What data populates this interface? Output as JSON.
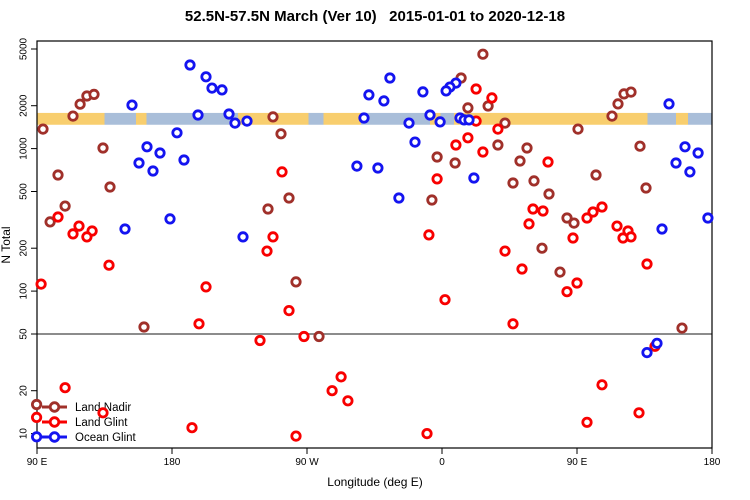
{
  "title": "52.5N-57.5N March (Ver 10)   2015-01-01 to 2020-12-18",
  "chart_data": {
    "type": "scatter",
    "title": "52.5N-57.5N March (Ver 10)   2015-01-01 to 2020-12-18",
    "xlabel": "Longitude (deg E)",
    "ylabel": "N Total",
    "x_axis": {
      "range_deg": [
        90,
        540
      ],
      "ticks": [
        {
          "deg": 90,
          "label": "90 E"
        },
        {
          "deg": 180,
          "label": "180"
        },
        {
          "deg": 270,
          "label": "90 W"
        },
        {
          "deg": 360,
          "label": "0"
        },
        {
          "deg": 450,
          "label": "90 E"
        },
        {
          "deg": 540,
          "label": "180"
        }
      ]
    },
    "y_axis": {
      "scale": "log",
      "ticks": [
        5000,
        2000,
        1000,
        500,
        200,
        100,
        50,
        20,
        10
      ],
      "range": [
        8,
        5800
      ]
    },
    "ref_line": {
      "value": 50,
      "color": "#8C8C8C"
    },
    "map_stripe": {
      "band_n": [
        1470,
        1780
      ],
      "land_color": "#F8CE6E",
      "ocean_color": "#A9BED9",
      "segments": [
        {
          "from": 90,
          "to": 135,
          "type": "land"
        },
        {
          "from": 135,
          "to": 156,
          "type": "ocean"
        },
        {
          "from": 156,
          "to": 163,
          "type": "land"
        },
        {
          "from": 163,
          "to": 224,
          "type": "ocean"
        },
        {
          "from": 224,
          "to": 271,
          "type": "land"
        },
        {
          "from": 271,
          "to": 281,
          "type": "ocean"
        },
        {
          "from": 281,
          "to": 306,
          "type": "land"
        },
        {
          "from": 306,
          "to": 352,
          "type": "ocean"
        },
        {
          "from": 352,
          "to": 359,
          "type": "land"
        },
        {
          "from": 359,
          "to": 368,
          "type": "ocean"
        },
        {
          "from": 368,
          "to": 497,
          "type": "land"
        },
        {
          "from": 497,
          "to": 516,
          "type": "ocean"
        },
        {
          "from": 516,
          "to": 524,
          "type": "land"
        },
        {
          "from": 524,
          "to": 540,
          "type": "ocean"
        }
      ]
    },
    "legend": {
      "position": "bottom-left",
      "entries": [
        "Land Nadir",
        "Land Glint",
        "Ocean Glint"
      ]
    },
    "series": [
      {
        "name": "Land Nadir",
        "color": "#A0302A",
        "points": [
          [
            118.7,
            2050
          ],
          [
            123.3,
            2340
          ],
          [
            128,
            2400
          ],
          [
            114,
            1690
          ],
          [
            94,
            1370
          ],
          [
            134,
            1010
          ],
          [
            104,
            653
          ],
          [
            138.7,
            538
          ],
          [
            108.7,
            395
          ],
          [
            98.7,
            306
          ],
          [
            161.3,
            56
          ],
          [
            247.3,
            1670
          ],
          [
            252.7,
            1270
          ],
          [
            258,
            450
          ],
          [
            244,
            377
          ],
          [
            262.7,
            116
          ],
          [
            278,
            48
          ],
          [
            387.3,
            4600
          ],
          [
            372.7,
            3130
          ],
          [
            390.7,
            1990
          ],
          [
            377.3,
            1930
          ],
          [
            402,
            1510
          ],
          [
            397.3,
            1060
          ],
          [
            416.7,
            1010
          ],
          [
            356.7,
            873
          ],
          [
            368.7,
            792
          ],
          [
            412,
            818
          ],
          [
            407.3,
            574
          ],
          [
            421.3,
            593
          ],
          [
            353.3,
            436
          ],
          [
            431.3,
            480
          ],
          [
            426.7,
            200
          ],
          [
            438.7,
            136
          ],
          [
            481.3,
            2420
          ],
          [
            486,
            2490
          ],
          [
            477.3,
            2060
          ],
          [
            473.3,
            1690
          ],
          [
            450.7,
            1370
          ],
          [
            492,
            1040
          ],
          [
            462.7,
            653
          ],
          [
            496,
            529
          ],
          [
            443.3,
            326
          ],
          [
            448,
            300
          ],
          [
            520,
            55
          ],
          [
            89.7,
            16
          ]
        ]
      },
      {
        "name": "Land Glint",
        "color": "#F80000",
        "points": [
          [
            104,
            331
          ],
          [
            118,
            286
          ],
          [
            126.7,
            264
          ],
          [
            114,
            252
          ],
          [
            123.3,
            240
          ],
          [
            138,
            152
          ],
          [
            92.7,
            112
          ],
          [
            108.7,
            21
          ],
          [
            134,
            14
          ],
          [
            89.7,
            13
          ],
          [
            202.7,
            107
          ],
          [
            198,
            59
          ],
          [
            193.3,
            11
          ],
          [
            253.3,
            686
          ],
          [
            247.3,
            240
          ],
          [
            243.3,
            191
          ],
          [
            258,
            73
          ],
          [
            268,
            48
          ],
          [
            238.7,
            45
          ],
          [
            262.7,
            9.6
          ],
          [
            292.7,
            25
          ],
          [
            286.7,
            20
          ],
          [
            297.3,
            17
          ],
          [
            382.7,
            2620
          ],
          [
            393.3,
            2270
          ],
          [
            382.7,
            1560
          ],
          [
            397.3,
            1370
          ],
          [
            377.3,
            1190
          ],
          [
            369.3,
            1060
          ],
          [
            387.3,
            946
          ],
          [
            430.7,
            805
          ],
          [
            356.7,
            613
          ],
          [
            420.7,
            377
          ],
          [
            427.3,
            365
          ],
          [
            418,
            296
          ],
          [
            351.3,
            248
          ],
          [
            402,
            191
          ],
          [
            413.3,
            143
          ],
          [
            443.3,
            99
          ],
          [
            362,
            87
          ],
          [
            407.3,
            59
          ],
          [
            350,
            10
          ],
          [
            460.7,
            359
          ],
          [
            466.7,
            389
          ],
          [
            456.7,
            326
          ],
          [
            484,
            264
          ],
          [
            476.7,
            286
          ],
          [
            486,
            240
          ],
          [
            480.7,
            236
          ],
          [
            447.3,
            236
          ],
          [
            496.7,
            155
          ],
          [
            450,
            114
          ],
          [
            502,
            41
          ],
          [
            466.7,
            22
          ],
          [
            456.7,
            12
          ],
          [
            491.3,
            14
          ]
        ]
      },
      {
        "name": "Ocean Glint",
        "color": "#1414F0",
        "points": [
          [
            192,
            3860
          ],
          [
            202.7,
            3190
          ],
          [
            206.7,
            2660
          ],
          [
            213.3,
            2580
          ],
          [
            153.3,
            2020
          ],
          [
            197.3,
            1720
          ],
          [
            183.3,
            1290
          ],
          [
            163.3,
            1030
          ],
          [
            172,
            931
          ],
          [
            158,
            792
          ],
          [
            188,
            832
          ],
          [
            167.3,
            696
          ],
          [
            148.7,
            273
          ],
          [
            178.7,
            321
          ],
          [
            218,
            1750
          ],
          [
            222,
            1510
          ],
          [
            230,
            1560
          ],
          [
            227.3,
            240
          ],
          [
            303.3,
            754
          ],
          [
            317.3,
            731
          ],
          [
            311.3,
            2380
          ],
          [
            321.3,
            2160
          ],
          [
            325.3,
            3130
          ],
          [
            308,
            1640
          ],
          [
            347.3,
            2500
          ],
          [
            369.3,
            2880
          ],
          [
            365.3,
            2700
          ],
          [
            362.7,
            2540
          ],
          [
            352,
            1720
          ],
          [
            358.7,
            1540
          ],
          [
            338,
            1510
          ],
          [
            372,
            1640
          ],
          [
            374.7,
            1590
          ],
          [
            378,
            1590
          ],
          [
            342,
            1110
          ],
          [
            381.3,
            622
          ],
          [
            331.3,
            450
          ],
          [
            511.3,
            2060
          ],
          [
            522,
            1030
          ],
          [
            530.7,
            931
          ],
          [
            516,
            792
          ],
          [
            525.3,
            686
          ],
          [
            506.7,
            273
          ],
          [
            537.3,
            326
          ],
          [
            503.3,
            43
          ],
          [
            496.7,
            37
          ],
          [
            89.7,
            9.5
          ]
        ]
      }
    ]
  }
}
